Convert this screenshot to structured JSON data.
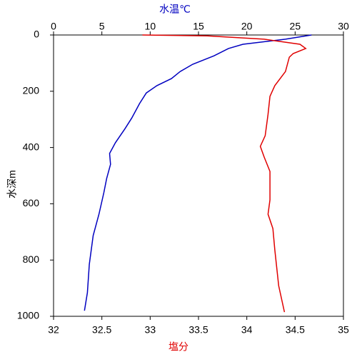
{
  "chart_data": {
    "type": "line",
    "x2_label": "水温℃",
    "x_label": "塩分",
    "y_label": "水深m",
    "xlim": [
      32,
      35
    ],
    "xticks": [
      32,
      32.5,
      33,
      33.5,
      34,
      34.5,
      35
    ],
    "x2lim": [
      0,
      30
    ],
    "x2ticks": [
      0,
      5,
      10,
      15,
      20,
      25,
      30
    ],
    "ylim": [
      0,
      1000
    ],
    "yticks": [
      0,
      200,
      400,
      600,
      800,
      1000
    ],
    "y_inverted": true,
    "series": [
      {
        "name": "水温",
        "color": "#0000c0",
        "axis": "x2",
        "x": [
          26.7,
          24,
          19.6,
          18.1,
          16.6,
          14.4,
          13.1,
          12.2,
          10.7,
          9.6,
          8.9,
          8.1,
          7.4,
          6.4,
          5.8,
          5.9,
          5.5,
          5.2,
          4.7,
          4.1,
          3.7,
          3.5,
          3.2
        ],
        "y": [
          0,
          15,
          33,
          48,
          74,
          104,
          130,
          155,
          180,
          206,
          244,
          295,
          333,
          383,
          421,
          460,
          510,
          561,
          637,
          713,
          815,
          916,
          980
        ]
      },
      {
        "name": "塩分",
        "color": "#e00000",
        "axis": "x",
        "x": [
          32.92,
          33.59,
          34.18,
          34.55,
          34.61,
          34.48,
          34.44,
          34.4,
          34.29,
          34.24,
          34.22,
          34.19,
          34.14,
          34.18,
          34.24,
          34.24,
          34.22,
          34.27,
          34.29,
          34.33,
          34.39
        ],
        "y": [
          0,
          3,
          15,
          33,
          48,
          66,
          79,
          130,
          180,
          218,
          282,
          358,
          396,
          434,
          485,
          586,
          637,
          688,
          764,
          891,
          985
        ]
      }
    ]
  }
}
